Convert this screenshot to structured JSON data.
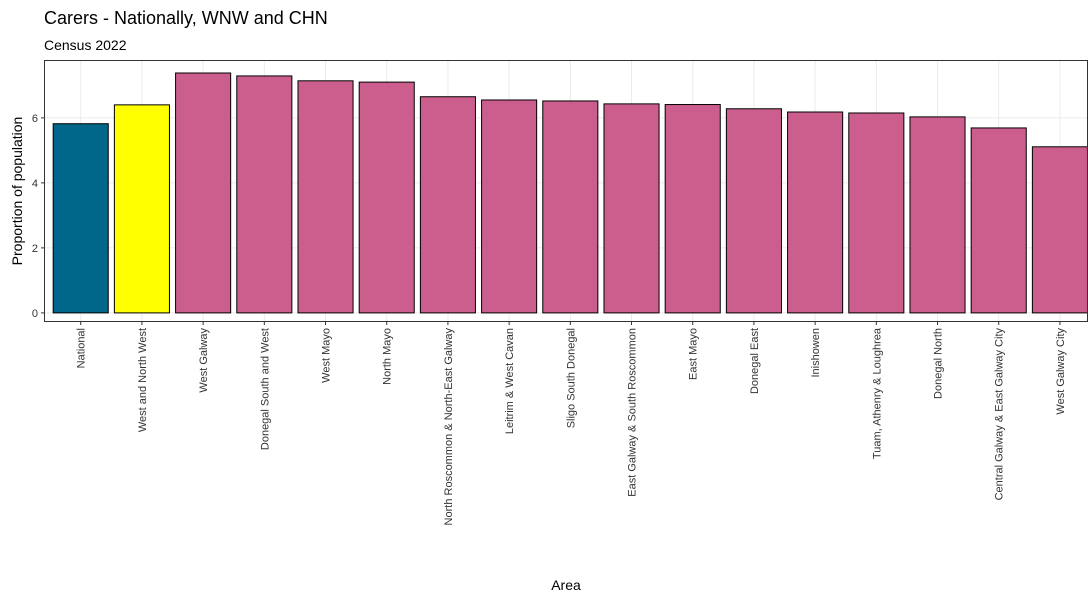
{
  "chart_data": {
    "type": "bar",
    "title": "Carers - Nationally, WNW and CHN",
    "subtitle": "Census 2022",
    "x_label": "Area",
    "y_label": "Proportion of population",
    "categories": [
      "National",
      "West and North West",
      "West Galway",
      "Donegal South and West",
      "West Mayo",
      "North Mayo",
      "North Roscommon & North-East Galway",
      "Leitrim & West Cavan",
      "Sligo South Donegal",
      "East Galway & South Roscommon",
      "East Mayo",
      "Donegal East",
      "Inishowen",
      "Tuam, Athenry & Loughrea",
      "Donegal North",
      "Central Galway & East Galway City",
      "West Galway City"
    ],
    "values": [
      5.82,
      6.4,
      7.38,
      7.29,
      7.14,
      7.1,
      6.65,
      6.55,
      6.52,
      6.43,
      6.41,
      6.28,
      6.18,
      6.15,
      6.03,
      5.69,
      5.11
    ],
    "colors": [
      "#00668a",
      "#ffff00",
      "#cc5e8d",
      "#cc5e8d",
      "#cc5e8d",
      "#cc5e8d",
      "#cc5e8d",
      "#cc5e8d",
      "#cc5e8d",
      "#cc5e8d",
      "#cc5e8d",
      "#cc5e8d",
      "#cc5e8d",
      "#cc5e8d",
      "#cc5e8d",
      "#cc5e8d",
      "#cc5e8d"
    ],
    "ylim": [
      -0.28,
      7.78
    ],
    "yticks": [
      0,
      2,
      4,
      6
    ],
    "grid": true
  }
}
